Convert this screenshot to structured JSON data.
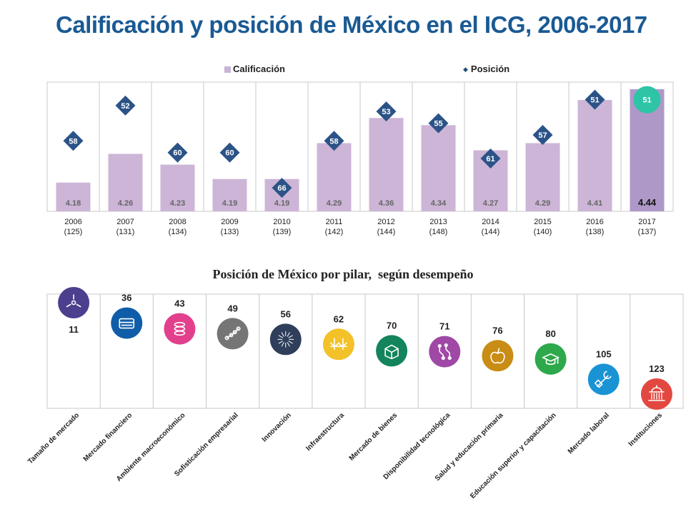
{
  "header": {
    "title": "Calificación y posición de México en el ICG, 2006-2017"
  },
  "legend": {
    "calificacion": "Calificación",
    "posicion": "Posición"
  },
  "colors": {
    "bar": "#cdb5d7",
    "bar_highlight": "#ae98c8",
    "diamond": "#2b5387",
    "highlight_circle": "#2dc5a6",
    "frame": "#c8c8c8"
  },
  "chart_data": [
    {
      "type": "bar",
      "title": "Calificación y posición de México en el ICG, 2006-2017",
      "categories": [
        "2006",
        "2007",
        "2008",
        "2009",
        "2010",
        "2011",
        "2012",
        "2013",
        "2014",
        "2015",
        "2016",
        "2017"
      ],
      "category_sublabels": [
        "(125)",
        "(131)",
        "(134)",
        "(133)",
        "(139)",
        "(142)",
        "(144)",
        "(148)",
        "(144)",
        "(140)",
        "(138)",
        "(137)"
      ],
      "series": [
        {
          "name": "Calificación",
          "values": [
            4.18,
            4.26,
            4.23,
            4.19,
            4.19,
            4.29,
            4.36,
            4.34,
            4.27,
            4.29,
            4.41,
            4.44
          ],
          "labels": [
            "4.18",
            "4.26",
            "4.23",
            "4.19",
            "4.19",
            "4.29",
            "4.36",
            "4.34",
            "4.27",
            "4.29",
            "4.41",
            "4.44"
          ]
        },
        {
          "name": "Posición",
          "values": [
            58,
            52,
            60,
            60,
            66,
            58,
            53,
            55,
            61,
            57,
            51,
            51
          ],
          "labels": [
            "58",
            "52",
            "60",
            "60",
            "66",
            "58",
            "53",
            "55",
            "61",
            "57",
            "51",
            "51"
          ]
        }
      ],
      "ylim": [
        4.1,
        4.46
      ],
      "position_ylim": [
        48,
        70
      ],
      "highlight_index": 11,
      "legend": "top",
      "grid": false
    },
    {
      "type": "scatter",
      "title": "Posición de México por pilar,  según desempeño",
      "categories": [
        "Tamaño de mercado",
        "Mercado financiero",
        "Ambiente macroeconómico",
        "Sofisticación empresarial",
        "Innovación",
        "Infraestructura",
        "Mercado de bienes",
        "Disponibilidad tecnológica",
        "Salud y educación primaria",
        "Educación superior y capacitación",
        "Mercado laboral",
        "Instituciones"
      ],
      "values": [
        11,
        36,
        43,
        49,
        56,
        62,
        70,
        71,
        76,
        80,
        105,
        123
      ],
      "labels": [
        "11",
        "36",
        "43",
        "49",
        "56",
        "62",
        "70",
        "71",
        "76",
        "80",
        "105",
        "123"
      ],
      "icons": [
        "market-size-icon",
        "card-icon",
        "coin-stack-icon",
        "network-icon",
        "innovation-burst-icon",
        "bridge-icon",
        "box-icon",
        "circuit-icon",
        "apple-icon",
        "graduation-cap-icon",
        "wrench-arm-icon",
        "capitol-building-icon"
      ],
      "icon_colors": [
        "#4b3f8e",
        "#0f5da8",
        "#e2408d",
        "#757575",
        "#2f3f5b",
        "#f3c128",
        "#13845c",
        "#9f48a6",
        "#c98c14",
        "#2da84a",
        "#1a93d4",
        "#e2483f"
      ],
      "ylim": [
        0,
        130
      ],
      "grid": false
    }
  ]
}
